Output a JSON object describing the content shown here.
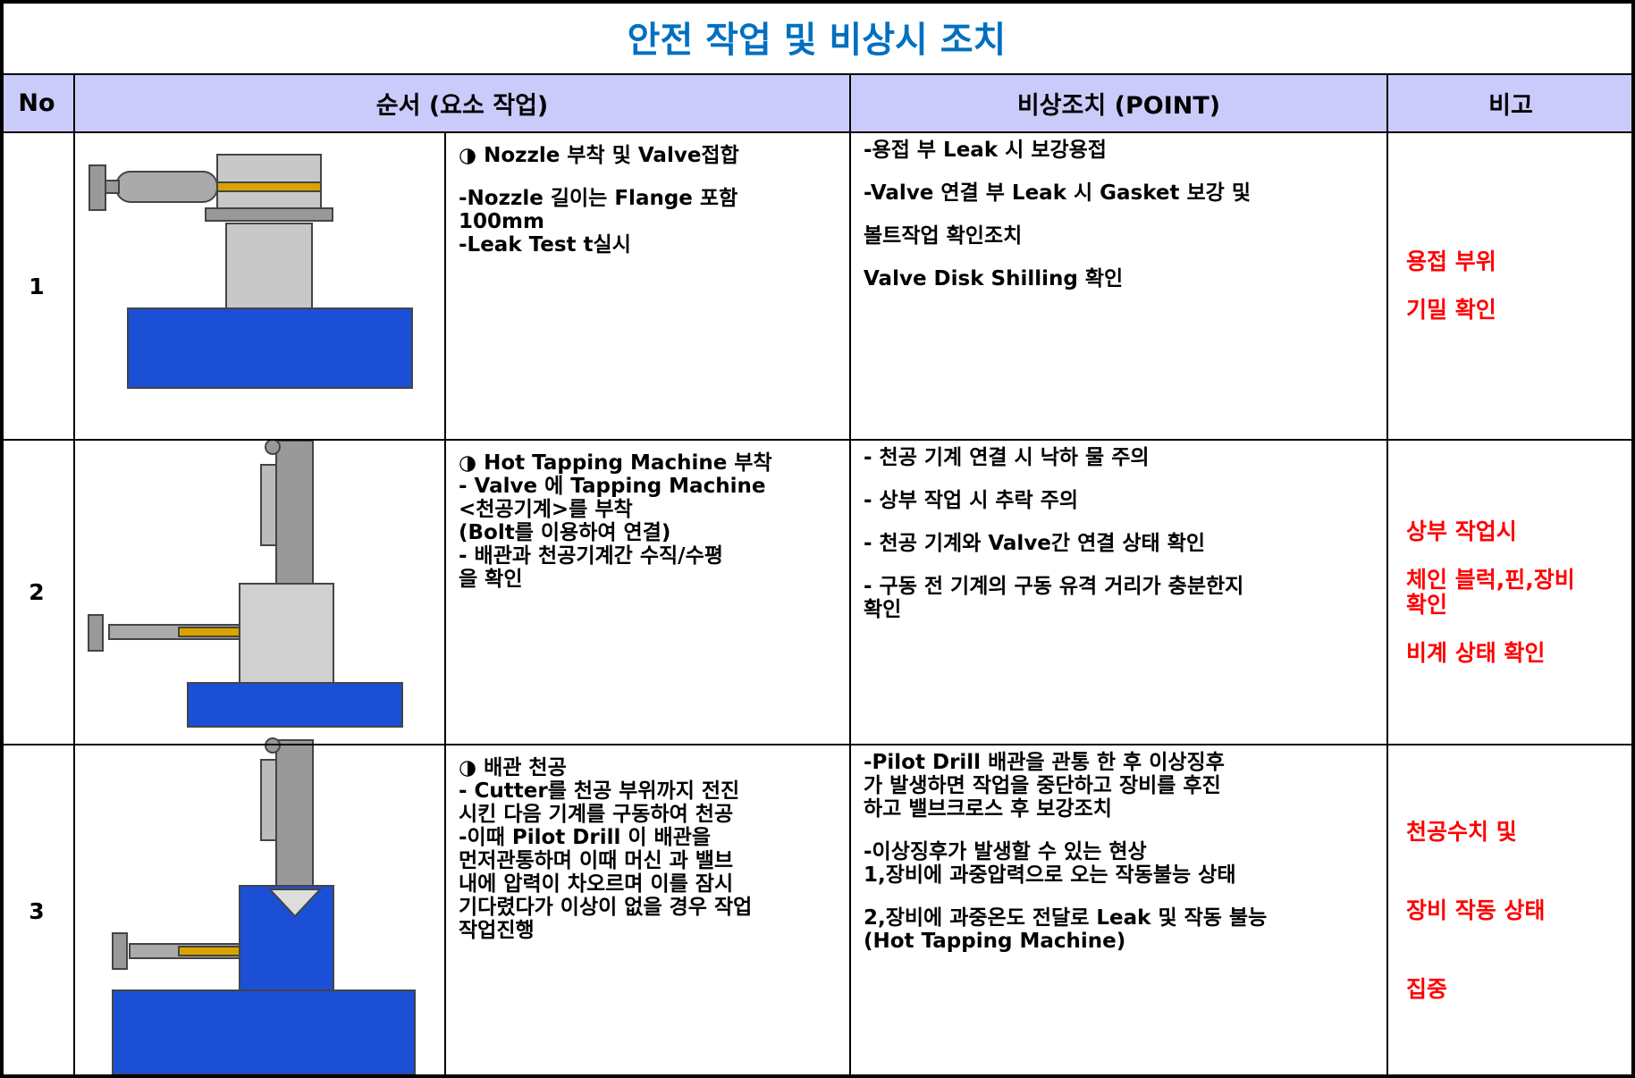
{
  "title": "안전 작업  및  비상시  조치",
  "header": [
    "No",
    "순서 (요소 작업)",
    "비상조치 (POINT)",
    "비고"
  ],
  "rows": [
    {
      "no": "1",
      "step": [
        "◑ Nozzle 부착 및 Valve접합",
        "-Nozzle 길이는 Flange 포함\n 100mm\n-Leak Test t실시"
      ],
      "point": [
        "-용접 부 Leak 시 보강용접",
        "-Valve 연결 부 Leak 시 Gasket 보강 및",
        " 볼트작업 확인조치",
        " Valve Disk Shilling 확인"
      ],
      "remark": [
        "용접 부위",
        "기밀 확인"
      ]
    },
    {
      "no": "2",
      "step": [
        "◑ Hot Tapping Machine 부착\n- Valve 에 Tapping Machine\n <천공기계>를 부착\n (Bolt를 이용하여 연결)\n- 배관과 천공기계간 수직/수평\n 을 확인"
      ],
      "point": [
        "-  천공 기계 연결 시 낙하 물 주의",
        "-  상부 작업 시 추락 주의",
        "-  천공 기계와 Valve간 연결 상태 확인",
        "- 구동 전 기계의 구동 유격 거리가 충분한지\n 확인"
      ],
      "remark": [
        "상부 작업시",
        "체인 블럭,핀,장비\n확인",
        "비계 상태 확인"
      ]
    },
    {
      "no": "3",
      "step": [
        "◑ 배관 천공\n-  Cutter를 천공 부위까지 전진\n 시킨 다음 기계를 구동하여 천공\n-이때 Pilot Drill 이 배관을\n 먼저관통하며 이때 머신 과 밸브\n 내에 압력이 차오르며 이를 잠시\n 기다렸다가 이상이 없을 경우 작업\n 작업진행"
      ],
      "point": [
        "-Pilot Drill 배관을 관통 한 후 이상징후\n 가 발생하면 작업을 중단하고 장비를 후진\n 하고 밸브크로스 후 보강조치",
        "-이상징후가 발생할 수 있는 현상\n1,장비에 과중압력으로 오는 작동불능 상태",
        "2,장비에 과중온도 전달로 Leak 및 작동 불능\n  (Hot Tapping Machine)"
      ],
      "remark": [
        "천공수치 및",
        "장비 작동 상태",
        " 집중"
      ]
    }
  ]
}
